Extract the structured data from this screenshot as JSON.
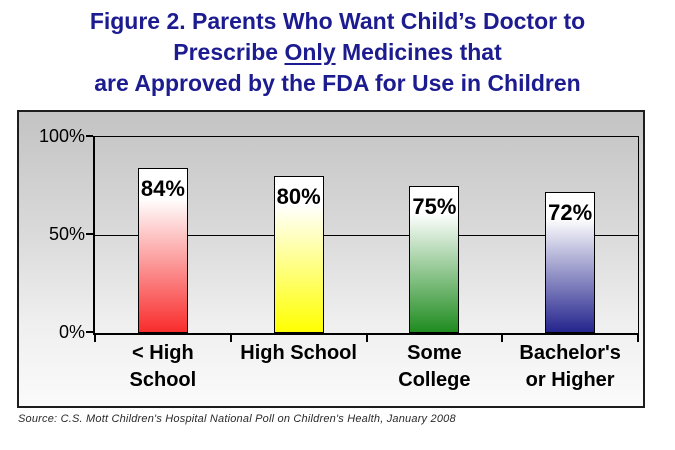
{
  "title": {
    "line1": "Figure 2. Parents Who Want Child’s Doctor to",
    "line2_pre": "Prescribe ",
    "line2_underlined": "Only",
    "line2_post": " Medicines that",
    "line3": "are Approved by the FDA for Use in Children",
    "color": "#1c1c90"
  },
  "source": "Source: C.S. Mott Children's Hospital National Poll on Children's Health, January 2008",
  "chart_data": {
    "type": "bar",
    "title": "Figure 2. Parents Who Want Child’s Doctor to Prescribe Only Medicines that are Approved by the FDA for Use in Children",
    "categories": [
      "< High School",
      "High School",
      "Some College",
      "Bachelor's or Higher"
    ],
    "category_labels": [
      "< High\nSchool",
      "High School",
      "Some\nCollege",
      "Bachelor's\nor Higher"
    ],
    "values": [
      84,
      80,
      75,
      72
    ],
    "value_labels": [
      "84%",
      "80%",
      "75%",
      "72%"
    ],
    "bar_colors": [
      "#f92c2c",
      "#ffff00",
      "#1f8c1f",
      "#24248e"
    ],
    "bar_gradient_top": "#ffffff",
    "xlabel": "",
    "ylabel": "",
    "ylim": [
      0,
      100
    ],
    "y_ticks": [
      {
        "label": "100%",
        "value": 100
      },
      {
        "label": "50%",
        "value": 50
      },
      {
        "label": "0%",
        "value": 0
      }
    ],
    "grid": "horizontal",
    "legend": "none"
  }
}
